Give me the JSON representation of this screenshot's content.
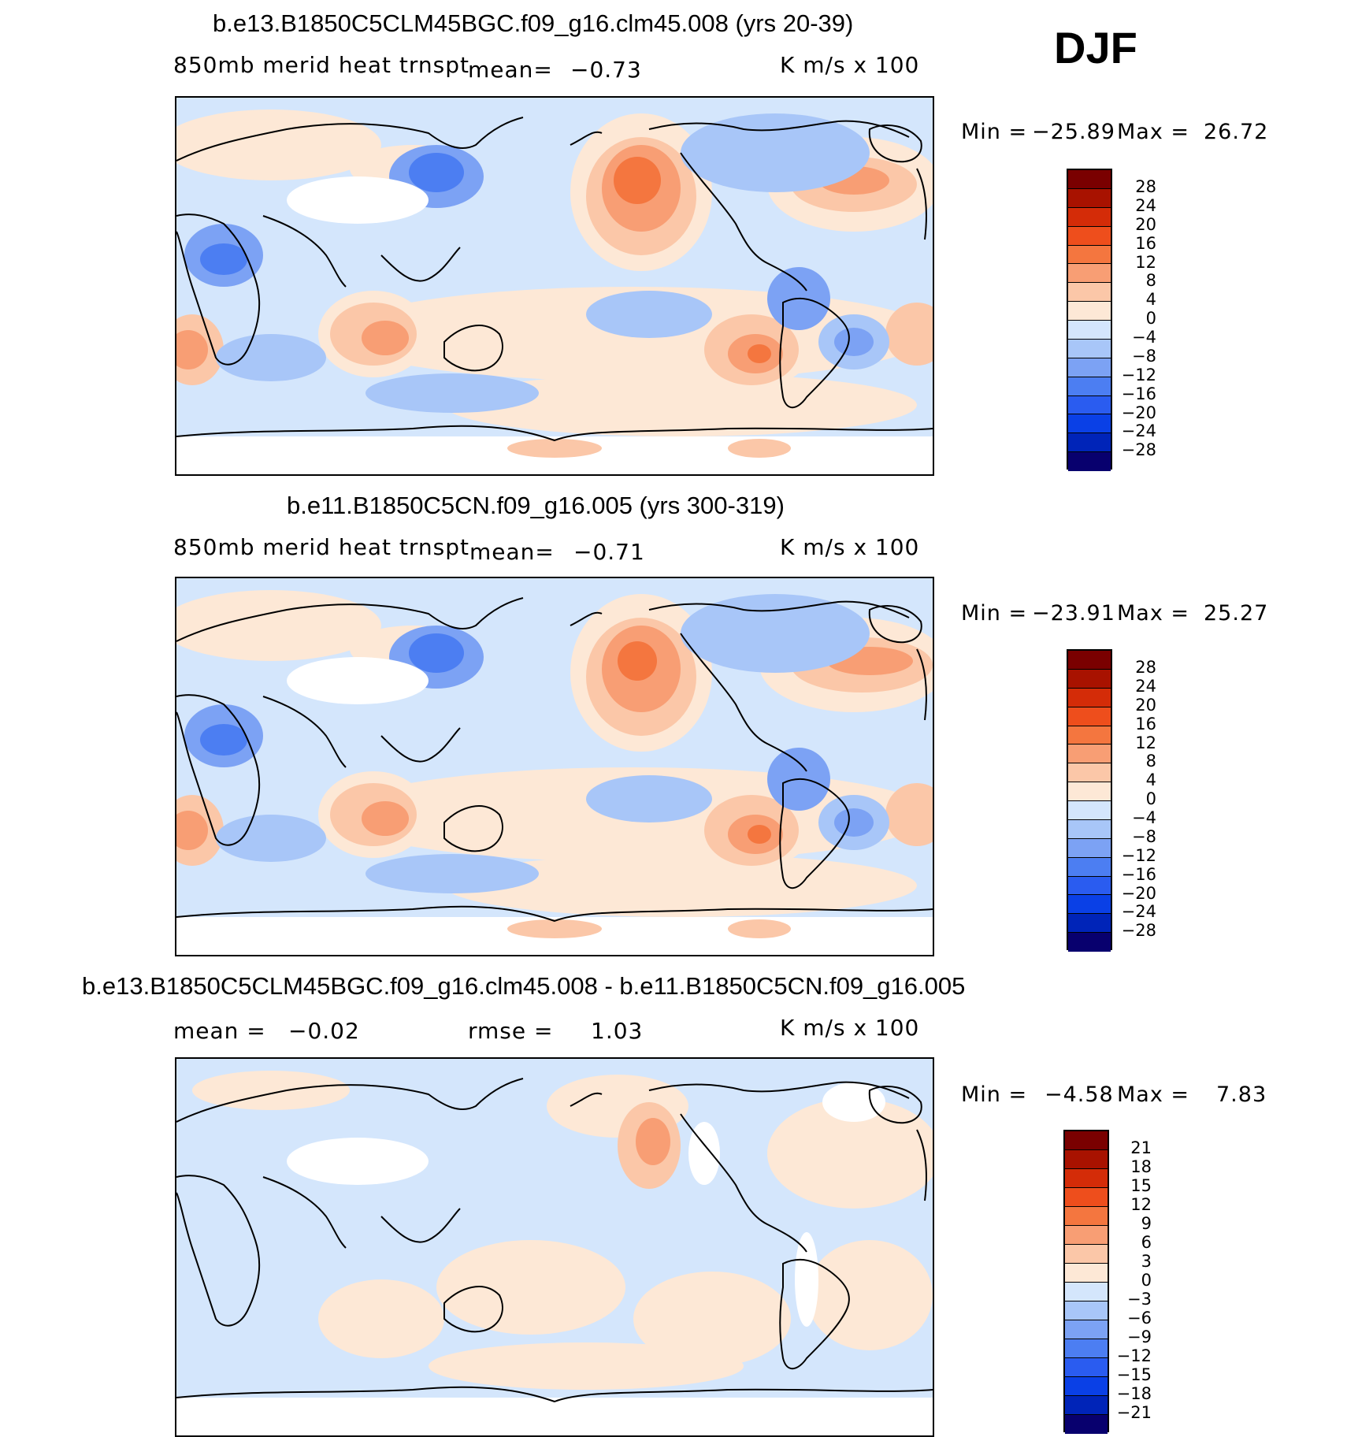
{
  "season": "DJF",
  "colors": {
    "diverging": [
      "#08006e",
      "#0024b8",
      "#0a40e6",
      "#2a5cf0",
      "#4c7ef2",
      "#7ca2f4",
      "#a8c6f8",
      "#d4e6fc",
      "#fde8d6",
      "#fbc7a8",
      "#f89e74",
      "#f4763f",
      "#ee4e1c",
      "#d42c08",
      "#a81200",
      "#7a0000"
    ],
    "land_outline": "#000000",
    "missing": "#ffffff"
  },
  "panels": [
    {
      "title": "b.e13.B1850C5CLM45BGC.f09_g16.clm45.008 (yrs 20-39)",
      "left_label": "850mb merid heat trnspt",
      "mean_label": "mean=",
      "mean_value": "−0.73",
      "rmse_label": "",
      "rmse_value": "",
      "units": "K m/s x 100",
      "min_label": "Min =",
      "min_value": "−25.89",
      "max_label": "Max =",
      "max_value": "26.72",
      "colorbar_labels": [
        "28",
        "24",
        "20",
        "16",
        "12",
        "8",
        "4",
        "0",
        "−4",
        "−8",
        "−12",
        "−16",
        "−20",
        "−24",
        "−28"
      ],
      "colorbar_range": [
        -28,
        28
      ]
    },
    {
      "title": "b.e11.B1850C5CN.f09_g16.005 (yrs 300-319)",
      "left_label": "850mb merid heat trnspt",
      "mean_label": "mean=",
      "mean_value": "−0.71",
      "rmse_label": "",
      "rmse_value": "",
      "units": "K m/s x 100",
      "min_label": "Min =",
      "min_value": "−23.91",
      "max_label": "Max =",
      "max_value": "25.27",
      "colorbar_labels": [
        "28",
        "24",
        "20",
        "16",
        "12",
        "8",
        "4",
        "0",
        "−4",
        "−8",
        "−12",
        "−16",
        "−20",
        "−24",
        "−28"
      ],
      "colorbar_range": [
        -28,
        28
      ]
    },
    {
      "title": "b.e13.B1850C5CLM45BGC.f09_g16.clm45.008 - b.e11.B1850C5CN.f09_g16.005",
      "left_label": "",
      "mean_label": "mean =",
      "mean_value": "−0.02",
      "rmse_label": "rmse =",
      "rmse_value": "1.03",
      "units": "K m/s x 100",
      "min_label": "Min =",
      "min_value": "−4.58",
      "max_label": "Max =",
      "max_value": "7.83",
      "colorbar_labels": [
        "21",
        "18",
        "15",
        "12",
        "9",
        "6",
        "3",
        "0",
        "−3",
        "−6",
        "−9",
        "−12",
        "−15",
        "−18",
        "−21"
      ],
      "colorbar_range": [
        -21,
        21
      ]
    }
  ]
}
